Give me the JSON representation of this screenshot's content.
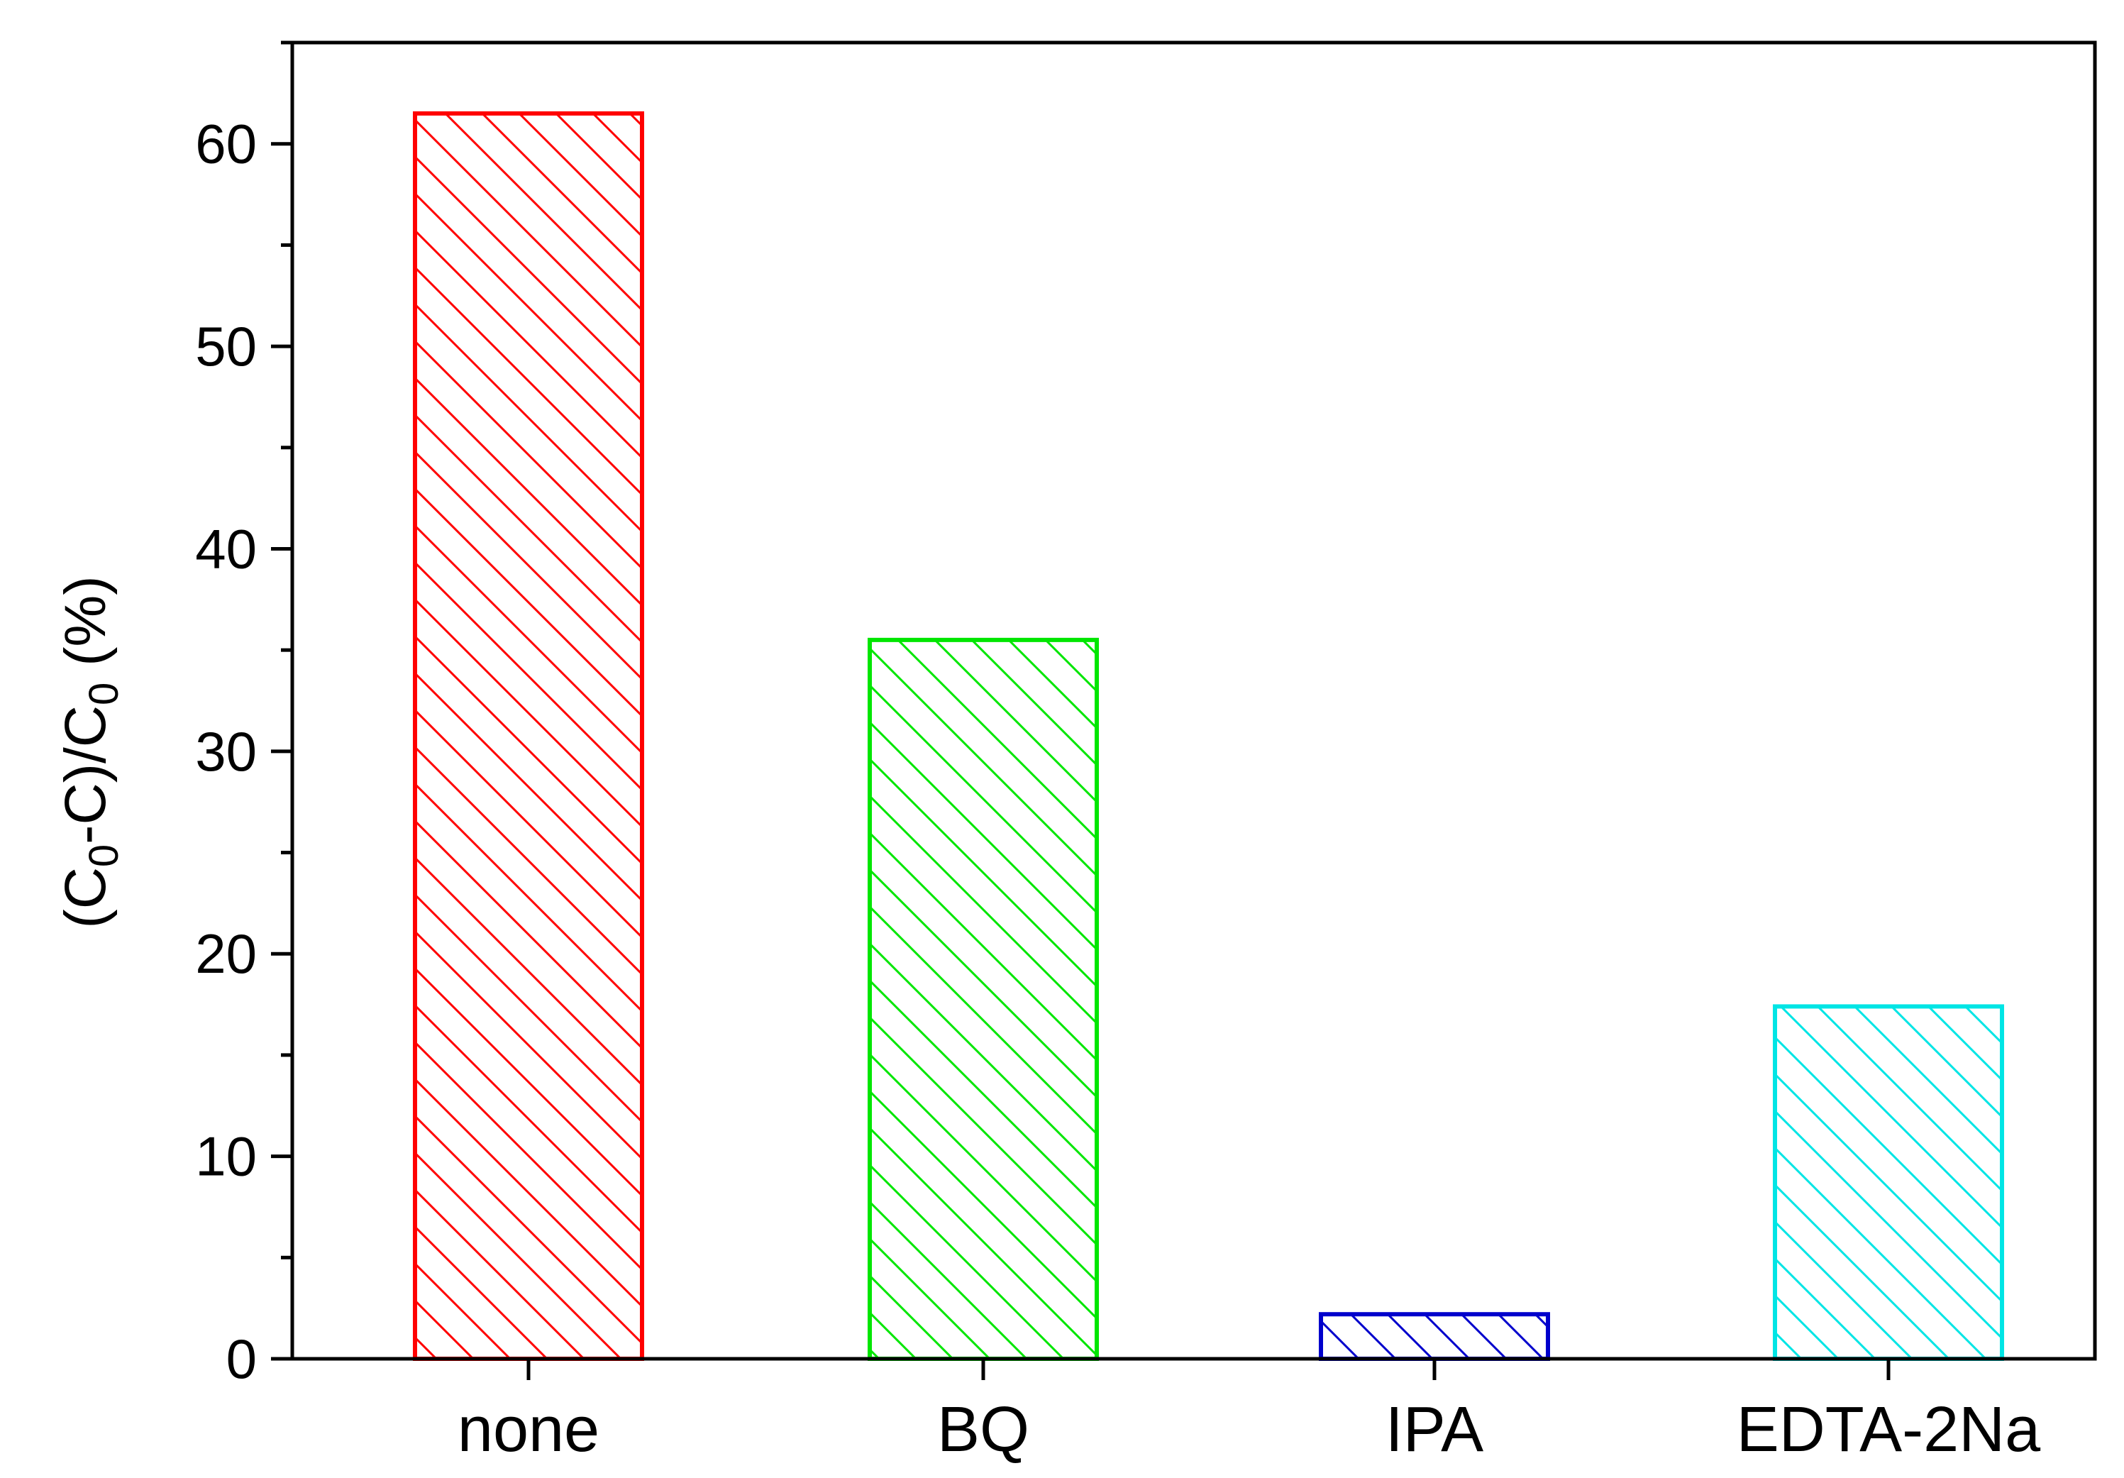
{
  "chart_data": {
    "type": "bar",
    "categories": [
      "none",
      "BQ",
      "IPA",
      "EDTA-2Na"
    ],
    "values": [
      61.5,
      35.5,
      2.2,
      17.4
    ],
    "colors": [
      "#ff0000",
      "#00e600",
      "#0000cc",
      "#00e5e5"
    ],
    "pattern": "diagonal-hatch",
    "xlabel": "",
    "ylabel": "(C0-C)/C0 (%)",
    "ylabel_parts": {
      "open": "(C",
      "sub1": "0",
      "mid": "-C)/C",
      "sub2": "0",
      "close": " (%)"
    },
    "ylim": [
      0,
      65
    ],
    "yticks": [
      0,
      10,
      20,
      30,
      40,
      50,
      60
    ],
    "ytick_labels": [
      "0",
      "10",
      "20",
      "30",
      "40",
      "50",
      "60"
    ],
    "minor_tick_step": 5,
    "grid": false,
    "legend": "none"
  }
}
